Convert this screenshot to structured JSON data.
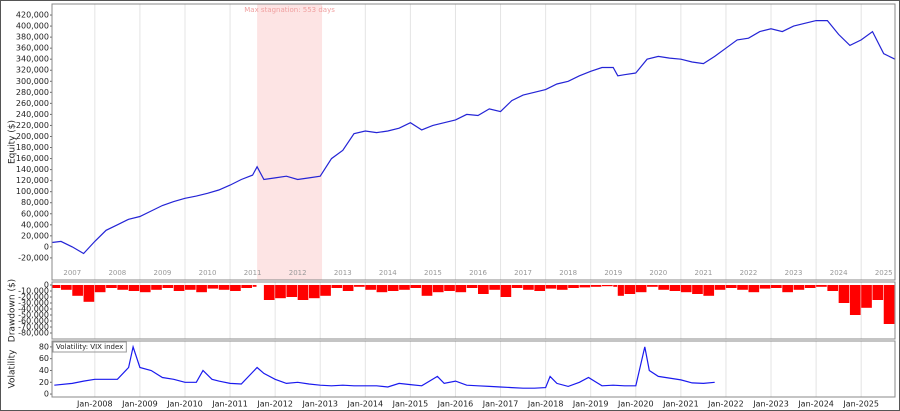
{
  "chart_data": [
    {
      "type": "line",
      "y_label": "Equity ($)",
      "color": "#2424d6",
      "xlim": [
        2007.05,
        2025.75
      ],
      "ylim": [
        -60000,
        440000
      ],
      "yticks": [
        {
          "value": -20000,
          "label": "-20,000"
        },
        0,
        {
          "value": 20000,
          "label": "20,000"
        },
        {
          "value": 40000,
          "label": "40,000"
        },
        {
          "value": 60000,
          "label": "60,000"
        },
        {
          "value": 80000,
          "label": "80,000"
        },
        {
          "value": 100000,
          "label": "100,000"
        },
        {
          "value": 120000,
          "label": "120,000"
        },
        {
          "value": 140000,
          "label": "140,000"
        },
        {
          "value": 160000,
          "label": "160,000"
        },
        {
          "value": 180000,
          "label": "180,000"
        },
        {
          "value": 200000,
          "label": "200,000"
        },
        {
          "value": 220000,
          "label": "220,000"
        },
        {
          "value": 240000,
          "label": "240,000"
        },
        {
          "value": 260000,
          "label": "260,000"
        },
        {
          "value": 280000,
          "label": "280,000"
        },
        {
          "value": 300000,
          "label": "300,000"
        },
        {
          "value": 320000,
          "label": "320,000"
        },
        {
          "value": 340000,
          "label": "340,000"
        },
        {
          "value": 360000,
          "label": "360,000"
        },
        {
          "value": 380000,
          "label": "380,000"
        },
        {
          "value": 400000,
          "label": "400,000"
        },
        {
          "value": 420000,
          "label": "420,000"
        }
      ],
      "year_labels": [
        2007,
        2008,
        2009,
        2010,
        2011,
        2012,
        2013,
        2014,
        2015,
        2016,
        2017,
        2018,
        2019,
        2020,
        2021,
        2022,
        2023,
        2024,
        2025
      ],
      "shaded_span": {
        "x": [
          2011.6,
          2013.04
        ],
        "label": "Max stagnation: 553 days",
        "color": "#fde4e4"
      },
      "x": [
        2007.05,
        2007.25,
        2007.5,
        2007.75,
        2008,
        2008.25,
        2008.5,
        2008.75,
        2009,
        2009.25,
        2009.5,
        2009.75,
        2010,
        2010.25,
        2010.5,
        2010.75,
        2011,
        2011.25,
        2011.5,
        2011.6,
        2011.75,
        2012,
        2012.25,
        2012.5,
        2012.75,
        2013,
        2013.25,
        2013.5,
        2013.75,
        2014,
        2014.25,
        2014.5,
        2014.75,
        2015,
        2015.25,
        2015.5,
        2015.75,
        2016,
        2016.25,
        2016.5,
        2016.75,
        2017,
        2017.25,
        2017.5,
        2017.75,
        2018,
        2018.25,
        2018.5,
        2018.75,
        2019,
        2019.25,
        2019.5,
        2019.6,
        2019.75,
        2020,
        2020.25,
        2020.5,
        2020.75,
        2021,
        2021.25,
        2021.5,
        2021.75,
        2022,
        2022.25,
        2022.5,
        2022.75,
        2023,
        2023.25,
        2023.5,
        2023.75,
        2024,
        2024.25,
        2024.5,
        2024.75,
        2025,
        2025.25,
        2025.5,
        2025.75
      ],
      "values": [
        8000,
        10000,
        0,
        -12000,
        10000,
        30000,
        40000,
        50000,
        55000,
        65000,
        75000,
        82000,
        88000,
        92000,
        97000,
        103000,
        112000,
        122000,
        130000,
        145000,
        122000,
        125000,
        128000,
        122000,
        125000,
        128000,
        160000,
        175000,
        205000,
        210000,
        207000,
        210000,
        215000,
        225000,
        212000,
        220000,
        225000,
        230000,
        240000,
        238000,
        250000,
        245000,
        265000,
        275000,
        280000,
        285000,
        295000,
        300000,
        310000,
        318000,
        325000,
        325000,
        310000,
        312000,
        315000,
        340000,
        345000,
        342000,
        340000,
        335000,
        332000,
        345000,
        360000,
        375000,
        378000,
        390000,
        395000,
        390000,
        400000,
        405000,
        410000,
        410000,
        385000,
        365000,
        375000,
        390000,
        350000,
        340000
      ]
    },
    {
      "type": "bar",
      "y_label": "Drawdown ($)",
      "color": "#ff0000",
      "xlim": [
        2007.05,
        2025.75
      ],
      "ylim": [
        -90000,
        5000
      ],
      "yticks": [
        {
          "value": -80000,
          "label": "-80,000"
        },
        {
          "value": -70000,
          "label": "-70,000"
        },
        {
          "value": -60000,
          "label": "-60,000"
        },
        {
          "value": -50000,
          "label": "-50,000"
        },
        {
          "value": -40000,
          "label": "-40,000"
        },
        {
          "value": -30000,
          "label": "-30,000"
        },
        {
          "value": -20000,
          "label": "-20,000"
        },
        {
          "value": -10000,
          "label": "-10,000"
        },
        0
      ],
      "x": [
        2007.05,
        2007.25,
        2007.5,
        2007.75,
        2008,
        2008.25,
        2008.5,
        2008.75,
        2009,
        2009.25,
        2009.5,
        2009.75,
        2010,
        2010.25,
        2010.5,
        2010.75,
        2011,
        2011.25,
        2011.5,
        2011.6,
        2011.75,
        2012,
        2012.25,
        2012.5,
        2012.75,
        2013,
        2013.25,
        2013.5,
        2013.75,
        2014,
        2014.25,
        2014.5,
        2014.75,
        2015,
        2015.25,
        2015.5,
        2015.75,
        2016,
        2016.25,
        2016.5,
        2016.75,
        2017,
        2017.25,
        2017.5,
        2017.75,
        2018,
        2018.25,
        2018.5,
        2018.75,
        2019,
        2019.25,
        2019.5,
        2019.6,
        2019.75,
        2020,
        2020.25,
        2020.5,
        2020.75,
        2021,
        2021.25,
        2021.5,
        2021.75,
        2022,
        2022.25,
        2022.5,
        2022.75,
        2023,
        2023.25,
        2023.5,
        2023.75,
        2024,
        2024.25,
        2024.5,
        2024.75,
        2025,
        2025.25,
        2025.5,
        2025.75
      ],
      "values": [
        -5000,
        -8000,
        -18000,
        -28000,
        -12000,
        -5000,
        -8000,
        -10000,
        -12000,
        -8000,
        -5000,
        -10000,
        -8000,
        -12000,
        -6000,
        -8000,
        -10000,
        -5000,
        -3000,
        0,
        -25000,
        -22000,
        -20000,
        -25000,
        -22000,
        -18000,
        -5000,
        -10000,
        -3000,
        -8000,
        -12000,
        -10000,
        -8000,
        -5000,
        -18000,
        -12000,
        -10000,
        -12000,
        -5000,
        -15000,
        -8000,
        -20000,
        -5000,
        -8000,
        -10000,
        -6000,
        -8000,
        -5000,
        -4000,
        -3000,
        -2000,
        -3000,
        -18000,
        -15000,
        -12000,
        -3000,
        -8000,
        -10000,
        -12000,
        -15000,
        -18000,
        -8000,
        -5000,
        -8000,
        -12000,
        -6000,
        -5000,
        -12000,
        -8000,
        -5000,
        -3000,
        -10000,
        -30000,
        -50000,
        -38000,
        -25000,
        -65000,
        -80000
      ]
    },
    {
      "type": "line",
      "y_label": "Volatility",
      "xlim": [
        2007.05,
        2025.75
      ],
      "ylim": [
        -5,
        90
      ],
      "yticks": [
        0,
        20,
        40,
        60,
        80
      ],
      "xticks": [
        {
          "value": 2008,
          "label": "Jan-2008"
        },
        {
          "value": 2009,
          "label": "Jan-2009"
        },
        {
          "value": 2010,
          "label": "Jan-2010"
        },
        {
          "value": 2011,
          "label": "Jan-2011"
        },
        {
          "value": 2012,
          "label": "Jan-2012"
        },
        {
          "value": 2013,
          "label": "Jan-2013"
        },
        {
          "value": 2014,
          "label": "Jan-2014"
        },
        {
          "value": 2015,
          "label": "Jan-2015"
        },
        {
          "value": 2016,
          "label": "Jan-2016"
        },
        {
          "value": 2017,
          "label": "Jan-2017"
        },
        {
          "value": 2018,
          "label": "Jan-2018"
        },
        {
          "value": 2019,
          "label": "Jan-2019"
        },
        {
          "value": 2020,
          "label": "Jan-2020"
        },
        {
          "value": 2021,
          "label": "Jan-2021"
        },
        {
          "value": 2022,
          "label": "Jan-2022"
        },
        {
          "value": 2023,
          "label": "Jan-2023"
        },
        {
          "value": 2024,
          "label": "Jan-2024"
        },
        {
          "value": 2025,
          "label": "Jan-2025"
        }
      ],
      "x": [
        2007.1,
        2007.5,
        2007.75,
        2008,
        2008.25,
        2008.5,
        2008.75,
        2008.85,
        2009,
        2009.25,
        2009.5,
        2009.75,
        2010,
        2010.25,
        2010.4,
        2010.6,
        2010.75,
        2011,
        2011.25,
        2011.6,
        2011.75,
        2012,
        2012.25,
        2012.5,
        2012.75,
        2013,
        2013.25,
        2013.5,
        2013.75,
        2014,
        2014.25,
        2014.5,
        2014.75,
        2015,
        2015.25,
        2015.6,
        2015.75,
        2016,
        2016.25,
        2016.5,
        2016.75,
        2017,
        2017.25,
        2017.5,
        2017.75,
        2018,
        2018.1,
        2018.25,
        2018.5,
        2018.75,
        2018.95,
        2019.25,
        2019.5,
        2019.75,
        2020,
        2020.2,
        2020.3,
        2020.5,
        2020.75,
        2021,
        2021.25,
        2021.5,
        2021.75
      ],
      "series": [
        {
          "name": "Volatility: VIX index",
          "color": "#1a1aee",
          "values": [
            15,
            18,
            22,
            25,
            25,
            25,
            45,
            80,
            45,
            40,
            28,
            25,
            20,
            20,
            40,
            25,
            22,
            18,
            17,
            45,
            35,
            25,
            18,
            20,
            17,
            15,
            14,
            15,
            14,
            14,
            14,
            12,
            18,
            16,
            14,
            30,
            18,
            22,
            15,
            14,
            13,
            12,
            11,
            10,
            10,
            11,
            30,
            18,
            13,
            20,
            28,
            14,
            15,
            14,
            14,
            80,
            40,
            30,
            27,
            24,
            19,
            18,
            20
          ]
        }
      ]
    }
  ]
}
